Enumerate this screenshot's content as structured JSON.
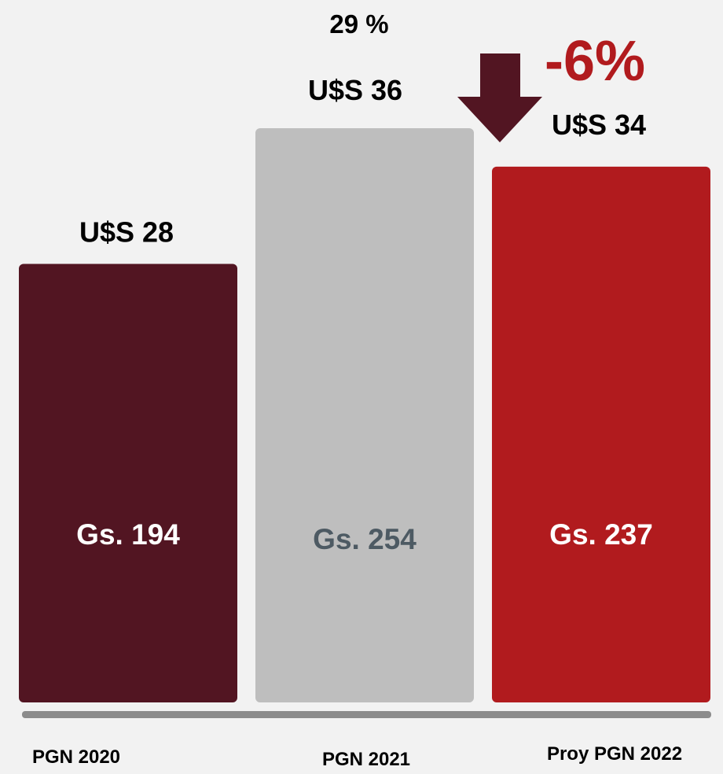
{
  "chart_data": {
    "type": "bar",
    "categories": [
      "PGN 2020",
      "PGN 2021",
      "Proy PGN 2022"
    ],
    "values": [
      194,
      254,
      237
    ],
    "value_labels": [
      "Gs. 194",
      "Gs. 254",
      "Gs. 237"
    ],
    "usd_labels": [
      "U$S 28",
      "U$S 36",
      "U$S 34"
    ],
    "usd_values": [
      28,
      36,
      34
    ],
    "bar_colors": [
      "#521522",
      "#bebebe",
      "#b11b1e"
    ],
    "value_label_colors": [
      "#ffffff",
      "#4d5a63",
      "#ffffff"
    ],
    "growth_annotation": "29 %",
    "change_annotation": "-6%",
    "change_color": "#b11b1e",
    "arrow_color": "#521522",
    "baseline_color": "#8c8c8c",
    "ylim": [
      0,
      254
    ],
    "grid": false,
    "legend": "none"
  }
}
